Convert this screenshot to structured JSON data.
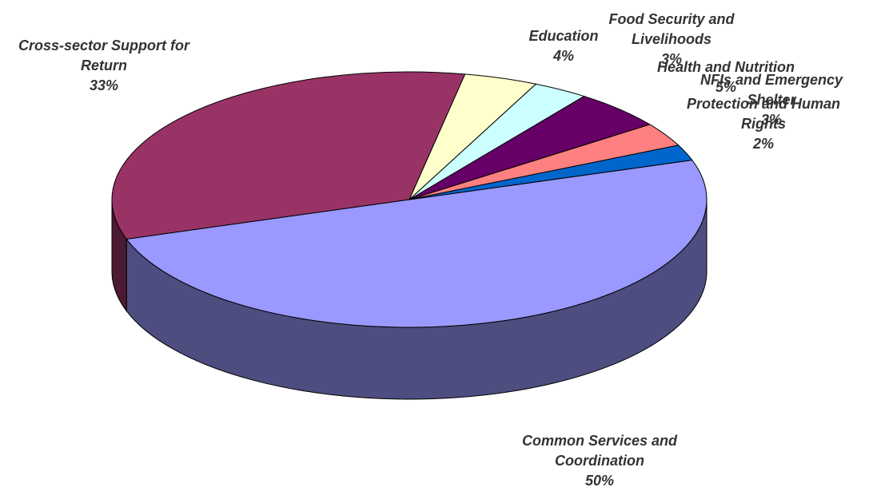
{
  "chart_data": {
    "type": "pie3d",
    "categories": [
      "Common Services and Coordination",
      "Cross-sector Support for Return",
      "Education",
      "Food Security and Livelihoods",
      "Health and Nutrition",
      "NFIs and Emergency Shelter",
      "Protection and Human Rights"
    ],
    "values": [
      50,
      33,
      4,
      3,
      5,
      3,
      2
    ],
    "value_labels": [
      "50%",
      "33%",
      "4%",
      "3%",
      "5%",
      "3%",
      "2%"
    ],
    "colors": [
      "#9999ff",
      "#993366",
      "#ffffcc",
      "#ccffff",
      "#660066",
      "#ff8080",
      "#0066cc"
    ]
  }
}
